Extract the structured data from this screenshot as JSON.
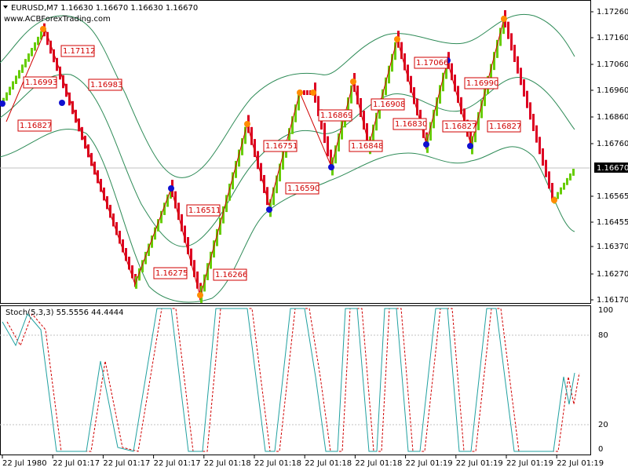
{
  "header": {
    "symbol_line": "EURUSD,M7  1.16630 1.16670 1.16630 1.16670",
    "website": "www.ACBForexTrading.com"
  },
  "price_axis": [
    "1.17260",
    "1.17160",
    "1.17060",
    "1.16960",
    "1.16860",
    "1.16760",
    "1.16565",
    "1.16455",
    "1.16370",
    "1.16270",
    "1.16170"
  ],
  "current_price": "1.16670",
  "price_labels": [
    "1.17112",
    "1.16993",
    "1.16983",
    "1.16827",
    "1.16751",
    "1.16590",
    "1.16511",
    "1.16275",
    "1.16266",
    "1.16869",
    "1.16908",
    "1.16830",
    "1.16848",
    "1.17066",
    "1.16990",
    "1.16827",
    "1.16827"
  ],
  "stoch": {
    "label": "Stoch(5,3,3) 55.5556 44.4444",
    "axis": [
      "100",
      "80",
      "20",
      "0"
    ]
  },
  "time_axis": [
    "22 Jul 1980",
    "22 Jul 01:17",
    "22 Jul 01:17",
    "22 Jul 01:17",
    "22 Jul 01:18",
    "22 Jul 01:18",
    "22 Jul 01:18",
    "22 Jul 01:18",
    "22 Jul 01:19",
    "22 Jul 01:19",
    "22 Jul 01:19",
    "22 Jul 01:19"
  ]
}
